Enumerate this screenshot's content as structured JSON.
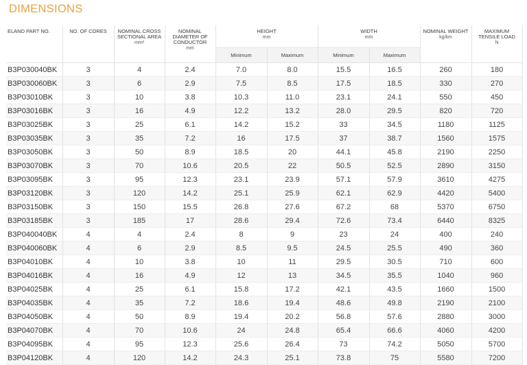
{
  "title": "DIMENSIONS",
  "headers": {
    "part": "ELAND PART NO.",
    "cores": "NO. OF CORES",
    "area": "NOMINAL CROSS SECTIONAL AREA",
    "area_unit": "mm²",
    "diameter": "NOMINAL DIAMETER OF CONDUCTOR",
    "diameter_unit": "mm",
    "height": "HEIGHT",
    "height_unit": "mm",
    "width": "WIDTH",
    "width_unit": "mm",
    "minimum": "Minimum",
    "maximum": "Maximum",
    "weight": "NOMINAL WEIGHT",
    "weight_unit": "kg/km",
    "tensile": "MAXIMUM TENSILE LOAD",
    "tensile_unit": "N"
  },
  "rows": [
    [
      "B3P030040BK",
      "3",
      "4",
      "2.4",
      "7.0",
      "8.0",
      "15.5",
      "16.5",
      "260",
      "180"
    ],
    [
      "B3P030060BK",
      "3",
      "6",
      "2.9",
      "7.5",
      "8.5",
      "17.5",
      "18.5",
      "330",
      "270"
    ],
    [
      "B3P03010BK",
      "3",
      "10",
      "3.8",
      "10.3",
      "11.0",
      "23.1",
      "24.1",
      "550",
      "450"
    ],
    [
      "B3P03016BK",
      "3",
      "16",
      "4.9",
      "12.2",
      "13.2",
      "28.0",
      "29.5",
      "820",
      "720"
    ],
    [
      "B3P03025BK",
      "3",
      "25",
      "6.1",
      "14.2",
      "15.2",
      "33",
      "34.5",
      "1180",
      "1125"
    ],
    [
      "B3P03035BK",
      "3",
      "35",
      "7.2",
      "16",
      "17.5",
      "37",
      "38.7",
      "1560",
      "1575"
    ],
    [
      "B3P03050BK",
      "3",
      "50",
      "8.9",
      "18.5",
      "20",
      "44.1",
      "45.8",
      "2190",
      "2250"
    ],
    [
      "B3P03070BK",
      "3",
      "70",
      "10.6",
      "20.5",
      "22",
      "50.5",
      "52.5",
      "2890",
      "3150"
    ],
    [
      "B3P03095BK",
      "3",
      "95",
      "12.3",
      "23.1",
      "23.9",
      "57.1",
      "57.9",
      "3610",
      "4275"
    ],
    [
      "B3P03120BK",
      "3",
      "120",
      "14.2",
      "25.1",
      "25.9",
      "62.1",
      "62.9",
      "4420",
      "5400"
    ],
    [
      "B3P03150BK",
      "3",
      "150",
      "15.5",
      "26.8",
      "27.6",
      "67.2",
      "68",
      "5370",
      "6750"
    ],
    [
      "B3P03185BK",
      "3",
      "185",
      "17",
      "28.6",
      "29.4",
      "72.6",
      "73.4",
      "6440",
      "8325"
    ],
    [
      "B3P040040BK",
      "4",
      "4",
      "2.4",
      "8",
      "9",
      "23",
      "24",
      "400",
      "240"
    ],
    [
      "B3P040060BK",
      "4",
      "6",
      "2.9",
      "8.5",
      "9.5",
      "24.5",
      "25.5",
      "490",
      "360"
    ],
    [
      "B3P04010BK",
      "4",
      "10",
      "3.8",
      "10",
      "11",
      "29.5",
      "30.5",
      "710",
      "600"
    ],
    [
      "B3P04016BK",
      "4",
      "16",
      "4.9",
      "12",
      "13",
      "34.5",
      "35.5",
      "1040",
      "960"
    ],
    [
      "B3P04025BK",
      "4",
      "25",
      "6.1",
      "15.8",
      "17.2",
      "42.1",
      "43.5",
      "1660",
      "1500"
    ],
    [
      "B3P04035BK",
      "4",
      "35",
      "7.2",
      "18.6",
      "19.4",
      "48.6",
      "49.8",
      "2190",
      "2100"
    ],
    [
      "B3P04050BK",
      "4",
      "50",
      "8.9",
      "19.4",
      "20.2",
      "56.8",
      "57.6",
      "2880",
      "3000"
    ],
    [
      "B3P04070BK",
      "4",
      "70",
      "10.6",
      "24",
      "24.8",
      "65.4",
      "66.6",
      "4060",
      "4200"
    ],
    [
      "B3P04095BK",
      "4",
      "95",
      "12.3",
      "25.6",
      "26.4",
      "73",
      "74.2",
      "5050",
      "5700"
    ],
    [
      "B3P04120BK",
      "4",
      "120",
      "14.2",
      "24.3",
      "25.1",
      "73.8",
      "75",
      "5580",
      "7200"
    ]
  ]
}
